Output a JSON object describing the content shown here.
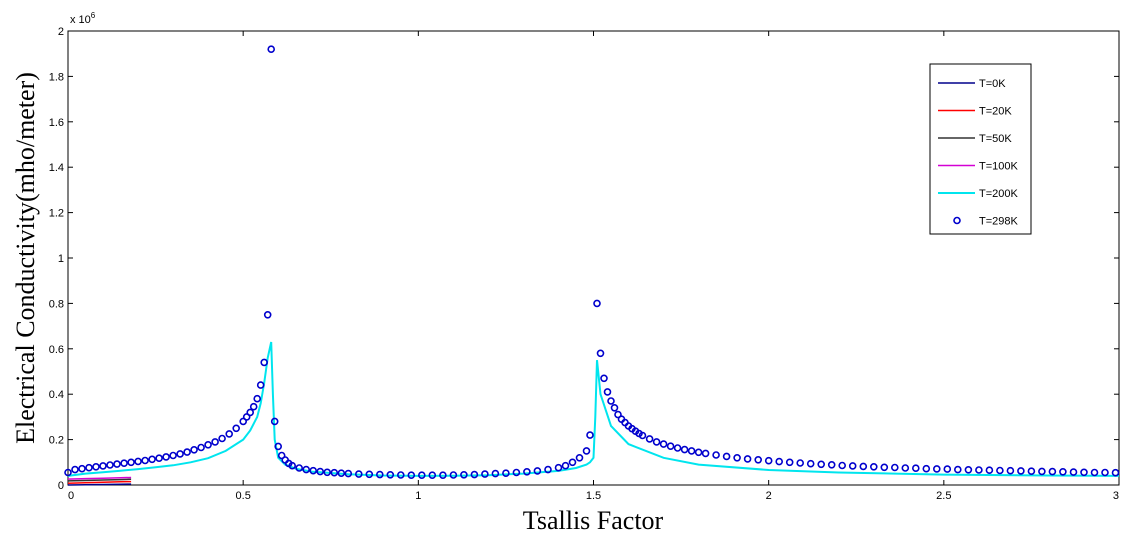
{
  "chart_data": {
    "type": "line",
    "xlabel": "Tsallis Factor",
    "ylabel": "Electrical Conductivity(mho/meter)",
    "y_multiplier_base": "x 10",
    "y_multiplier_exp": "6",
    "xlim": [
      0,
      3
    ],
    "ylim": [
      0,
      2
    ],
    "x_ticks": [
      {
        "value": 0,
        "label": "0"
      },
      {
        "value": 0.5,
        "label": "0.5"
      },
      {
        "value": 1,
        "label": "1"
      },
      {
        "value": 1.5,
        "label": "1.5"
      },
      {
        "value": 2,
        "label": "2"
      },
      {
        "value": 2.5,
        "label": "2.5"
      },
      {
        "value": 3,
        "label": "3"
      }
    ],
    "y_ticks": [
      {
        "value": 0,
        "label": "0"
      },
      {
        "value": 0.2,
        "label": "0.2"
      },
      {
        "value": 0.4,
        "label": "0.4"
      },
      {
        "value": 0.6,
        "label": "0.6"
      },
      {
        "value": 0.8,
        "label": "0.8"
      },
      {
        "value": 1,
        "label": "1"
      },
      {
        "value": 1.2,
        "label": "1.2"
      },
      {
        "value": 1.4,
        "label": "1.4"
      },
      {
        "value": 1.6,
        "label": "1.6"
      },
      {
        "value": 1.8,
        "label": "1.8"
      },
      {
        "value": 2,
        "label": "2"
      }
    ],
    "grid": false,
    "legend_position": "top-right",
    "series": [
      {
        "name": "T=0K",
        "color": "#00008b",
        "style": "line",
        "x": [
          0,
          0.05,
          0.1,
          0.15,
          0.18
        ],
        "y": [
          0.0,
          0.001,
          0.002,
          0.003,
          0.004
        ]
      },
      {
        "name": "T=20K",
        "color": "#ff0000",
        "style": "line",
        "x": [
          0,
          0.05,
          0.1,
          0.15,
          0.18
        ],
        "y": [
          0.008,
          0.01,
          0.012,
          0.014,
          0.015
        ]
      },
      {
        "name": "T=50K",
        "color": "#333333",
        "style": "line",
        "x": [
          0,
          0.05,
          0.1,
          0.15,
          0.18
        ],
        "y": [
          0.018,
          0.02,
          0.022,
          0.024,
          0.025
        ]
      },
      {
        "name": "T=100K",
        "color": "#d400d4",
        "style": "line",
        "x": [
          0,
          0.05,
          0.1,
          0.15,
          0.18
        ],
        "y": [
          0.026,
          0.028,
          0.03,
          0.032,
          0.033
        ]
      },
      {
        "name": "T=200K",
        "color": "#00e5ee",
        "style": "line",
        "x": [
          0.0,
          0.05,
          0.1,
          0.15,
          0.2,
          0.25,
          0.3,
          0.35,
          0.4,
          0.45,
          0.5,
          0.52,
          0.54,
          0.55,
          0.56,
          0.57,
          0.58,
          0.585,
          0.59,
          0.6,
          0.62,
          0.65,
          0.7,
          0.8,
          0.9,
          1.0,
          1.1,
          1.2,
          1.3,
          1.4,
          1.45,
          1.48,
          1.49,
          1.5,
          1.505,
          1.51,
          1.52,
          1.55,
          1.6,
          1.7,
          1.8,
          2.0,
          2.2,
          2.5,
          2.8,
          3.0
        ],
        "y": [
          0.04,
          0.05,
          0.056,
          0.063,
          0.07,
          0.078,
          0.087,
          0.1,
          0.118,
          0.15,
          0.2,
          0.24,
          0.3,
          0.36,
          0.45,
          0.56,
          0.63,
          0.4,
          0.2,
          0.12,
          0.09,
          0.072,
          0.058,
          0.047,
          0.042,
          0.04,
          0.041,
          0.043,
          0.05,
          0.062,
          0.075,
          0.09,
          0.1,
          0.12,
          0.3,
          0.55,
          0.4,
          0.26,
          0.18,
          0.12,
          0.09,
          0.066,
          0.055,
          0.046,
          0.042,
          0.04
        ]
      },
      {
        "name": "T=298K",
        "color": "#0000cd",
        "style": "marker",
        "x": [
          0.0,
          0.02,
          0.04,
          0.06,
          0.08,
          0.1,
          0.12,
          0.14,
          0.16,
          0.18,
          0.2,
          0.22,
          0.24,
          0.26,
          0.28,
          0.3,
          0.32,
          0.34,
          0.36,
          0.38,
          0.4,
          0.42,
          0.44,
          0.46,
          0.48,
          0.5,
          0.51,
          0.52,
          0.53,
          0.54,
          0.55,
          0.56,
          0.57,
          0.58,
          0.59,
          0.6,
          0.61,
          0.62,
          0.63,
          0.64,
          0.66,
          0.68,
          0.7,
          0.72,
          0.74,
          0.76,
          0.78,
          0.8,
          0.83,
          0.86,
          0.89,
          0.92,
          0.95,
          0.98,
          1.01,
          1.04,
          1.07,
          1.1,
          1.13,
          1.16,
          1.19,
          1.22,
          1.25,
          1.28,
          1.31,
          1.34,
          1.37,
          1.4,
          1.42,
          1.44,
          1.46,
          1.48,
          1.49,
          1.51,
          1.52,
          1.53,
          1.54,
          1.55,
          1.56,
          1.57,
          1.58,
          1.59,
          1.6,
          1.61,
          1.62,
          1.63,
          1.64,
          1.66,
          1.68,
          1.7,
          1.72,
          1.74,
          1.76,
          1.78,
          1.8,
          1.82,
          1.85,
          1.88,
          1.91,
          1.94,
          1.97,
          2.0,
          2.03,
          2.06,
          2.09,
          2.12,
          2.15,
          2.18,
          2.21,
          2.24,
          2.27,
          2.3,
          2.33,
          2.36,
          2.39,
          2.42,
          2.45,
          2.48,
          2.51,
          2.54,
          2.57,
          2.6,
          2.63,
          2.66,
          2.69,
          2.72,
          2.75,
          2.78,
          2.81,
          2.84,
          2.87,
          2.9,
          2.93,
          2.96,
          2.99
        ],
        "y": [
          0.055,
          0.068,
          0.072,
          0.076,
          0.08,
          0.084,
          0.088,
          0.092,
          0.096,
          0.1,
          0.104,
          0.108,
          0.113,
          0.118,
          0.124,
          0.13,
          0.137,
          0.145,
          0.155,
          0.165,
          0.177,
          0.19,
          0.205,
          0.225,
          0.25,
          0.28,
          0.3,
          0.32,
          0.345,
          0.38,
          0.44,
          0.54,
          0.75,
          1.92,
          0.28,
          0.17,
          0.13,
          0.11,
          0.095,
          0.085,
          0.075,
          0.068,
          0.063,
          0.059,
          0.056,
          0.054,
          0.052,
          0.05,
          0.048,
          0.047,
          0.046,
          0.045,
          0.044,
          0.043,
          0.043,
          0.043,
          0.043,
          0.044,
          0.045,
          0.046,
          0.048,
          0.05,
          0.052,
          0.055,
          0.058,
          0.062,
          0.068,
          0.076,
          0.085,
          0.1,
          0.12,
          0.15,
          0.22,
          0.8,
          0.58,
          0.47,
          0.41,
          0.37,
          0.34,
          0.31,
          0.29,
          0.275,
          0.26,
          0.248,
          0.237,
          0.227,
          0.218,
          0.203,
          0.19,
          0.18,
          0.171,
          0.163,
          0.156,
          0.15,
          0.144,
          0.139,
          0.132,
          0.126,
          0.12,
          0.115,
          0.111,
          0.107,
          0.103,
          0.1,
          0.097,
          0.094,
          0.091,
          0.089,
          0.086,
          0.084,
          0.082,
          0.08,
          0.078,
          0.077,
          0.075,
          0.074,
          0.072,
          0.071,
          0.07,
          0.068,
          0.067,
          0.066,
          0.065,
          0.064,
          0.063,
          0.062,
          0.061,
          0.06,
          0.059,
          0.058,
          0.057,
          0.056,
          0.055,
          0.055,
          0.054
        ]
      }
    ]
  }
}
